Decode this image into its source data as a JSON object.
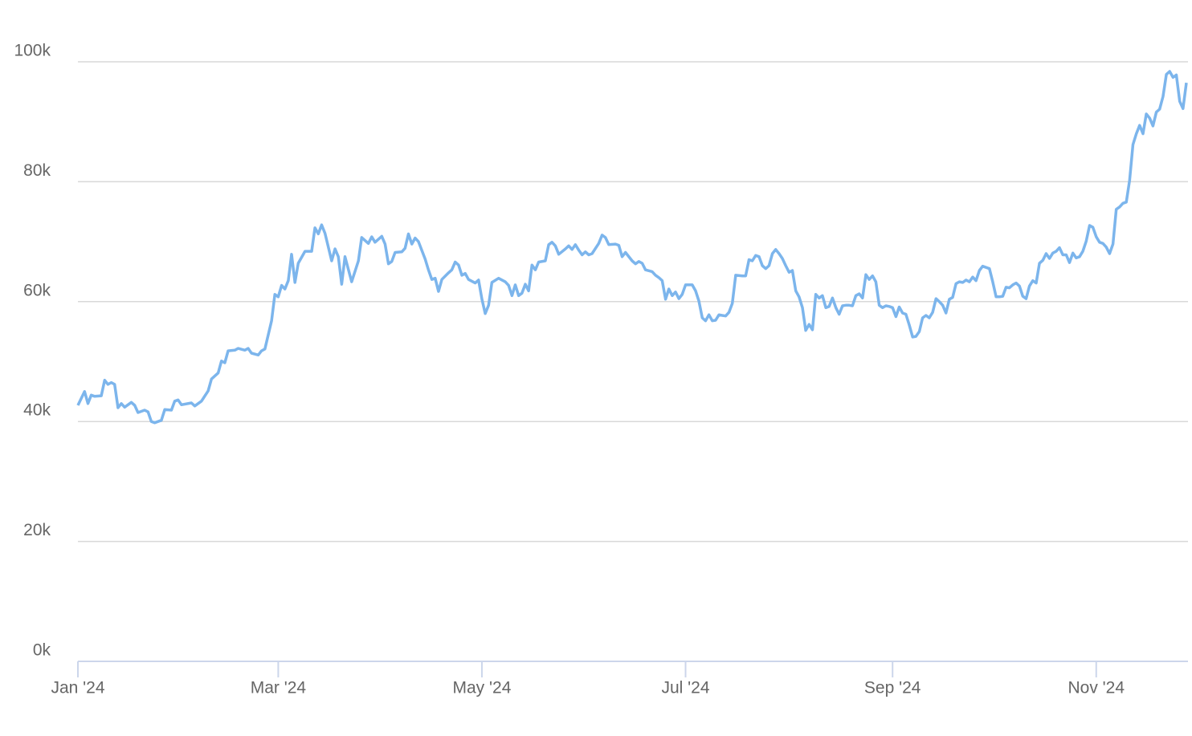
{
  "chart_data": {
    "type": "line",
    "x": [
      0,
      2,
      3,
      4,
      5,
      7,
      8,
      9,
      10,
      11,
      12,
      13,
      14,
      16,
      17,
      18,
      20,
      21,
      22,
      23,
      25,
      26,
      28,
      29,
      30,
      31,
      34,
      35,
      37,
      39,
      40,
      42,
      43,
      44,
      45,
      47,
      48,
      50,
      51,
      52,
      54,
      55,
      56,
      58,
      59,
      60,
      61,
      62,
      63,
      64,
      65,
      66,
      68,
      70,
      71,
      72,
      73,
      74,
      76,
      77,
      78,
      79,
      80,
      82,
      84,
      85,
      87,
      88,
      89,
      91,
      92,
      93,
      94,
      95,
      97,
      98,
      99,
      100,
      101,
      102,
      104,
      105,
      106,
      107,
      108,
      109,
      111,
      112,
      113,
      114,
      115,
      116,
      117,
      119,
      120,
      121,
      122,
      123,
      124,
      126,
      128,
      129,
      130,
      131,
      132,
      133,
      134,
      135,
      136,
      137,
      138,
      140,
      141,
      142,
      143,
      144,
      146,
      147,
      148,
      149,
      150,
      151,
      152,
      153,
      154,
      156,
      157,
      158,
      159,
      161,
      162,
      163,
      164,
      166,
      167,
      168,
      169,
      170,
      172,
      173,
      174,
      175,
      176,
      177,
      178,
      179,
      180,
      181,
      182,
      184,
      185,
      186,
      187,
      188,
      189,
      190,
      191,
      192,
      193,
      194,
      195,
      196,
      197,
      199,
      200,
      201,
      202,
      203,
      204,
      205,
      206,
      207,
      208,
      209,
      210,
      211,
      212,
      213,
      214,
      215,
      216,
      217,
      218,
      219,
      220,
      221,
      222,
      223,
      224,
      225,
      226,
      227,
      228,
      229,
      230,
      231,
      232,
      233,
      234,
      235,
      236,
      237,
      238,
      239,
      240,
      241,
      242,
      243,
      244,
      245,
      246,
      247,
      248,
      249,
      250,
      251,
      252,
      253,
      254,
      255,
      256,
      257,
      258,
      259,
      260,
      261,
      262,
      263,
      264,
      265,
      266,
      267,
      268,
      269,
      270,
      271,
      272,
      273,
      274,
      275,
      276,
      277,
      278,
      279,
      280,
      281,
      282,
      283,
      284,
      285,
      286,
      287,
      288,
      289,
      290,
      291,
      292,
      293,
      294,
      295,
      296,
      297,
      298,
      299,
      300,
      301,
      302,
      303,
      304,
      305,
      306,
      307,
      308,
      309,
      310,
      311,
      312,
      313,
      314,
      315,
      316,
      317,
      318,
      319,
      320,
      321,
      322,
      323,
      324,
      325,
      326,
      327,
      328,
      329,
      330,
      331,
      332
    ],
    "series": [
      {
        "color": "#7cb5ec",
        "values": [
          42.7,
          45.0,
          43.0,
          44.4,
          44.2,
          44.3,
          46.9,
          46.2,
          46.5,
          46.2,
          42.3,
          43.0,
          42.4,
          43.2,
          42.7,
          41.5,
          41.9,
          41.6,
          40.0,
          39.8,
          40.2,
          42.0,
          41.9,
          43.4,
          43.6,
          42.8,
          43.1,
          42.6,
          43.4,
          45.1,
          47.1,
          48.1,
          50.1,
          49.8,
          51.8,
          51.9,
          52.2,
          51.9,
          52.2,
          51.4,
          51.1,
          51.8,
          52.1,
          56.8,
          61.2,
          60.8,
          62.7,
          62.1,
          63.5,
          67.9,
          63.2,
          66.4,
          68.4,
          68.4,
          72.3,
          71.3,
          72.8,
          71.4,
          66.8,
          68.8,
          67.5,
          62.9,
          67.5,
          63.3,
          66.8,
          70.7,
          69.7,
          70.8,
          69.9,
          70.9,
          69.6,
          66.3,
          66.7,
          68.2,
          68.3,
          68.9,
          71.3,
          69.6,
          70.6,
          70.0,
          67.1,
          65.3,
          63.7,
          63.9,
          61.7,
          63.7,
          64.8,
          65.3,
          66.6,
          66.1,
          64.4,
          64.7,
          63.7,
          63.1,
          63.6,
          60.4,
          58.0,
          59.4,
          63.2,
          63.9,
          63.3,
          62.7,
          61.0,
          62.8,
          61.0,
          61.4,
          62.9,
          61.8,
          66.1,
          65.3,
          66.6,
          66.8,
          69.5,
          69.9,
          69.3,
          67.9,
          68.8,
          69.3,
          68.7,
          69.5,
          68.6,
          67.8,
          68.3,
          67.8,
          68.0,
          69.7,
          71.1,
          70.7,
          69.5,
          69.6,
          69.4,
          67.5,
          68.2,
          66.8,
          66.3,
          66.7,
          66.4,
          65.3,
          65.0,
          64.4,
          64.0,
          63.5,
          60.4,
          62.1,
          61.0,
          61.6,
          60.5,
          61.2,
          62.8,
          62.8,
          61.8,
          60.1,
          57.3,
          56.8,
          57.8,
          56.8,
          56.9,
          57.8,
          57.7,
          57.6,
          58.2,
          59.7,
          64.4,
          64.3,
          64.3,
          67.0,
          66.8,
          67.7,
          67.5,
          66.0,
          65.5,
          66.0,
          68.0,
          68.7,
          68.0,
          67.2,
          66.0,
          64.9,
          65.2,
          61.8,
          60.8,
          59.0,
          55.2,
          56.2,
          55.3,
          61.2,
          60.6,
          61.0,
          59.0,
          59.2,
          60.6,
          59.0,
          57.9,
          59.3,
          59.4,
          59.4,
          59.3,
          61.0,
          61.3,
          60.6,
          64.5,
          63.7,
          64.3,
          63.3,
          59.4,
          59.0,
          59.3,
          59.2,
          59.0,
          57.5,
          59.1,
          58.1,
          57.9,
          56.1,
          54.1,
          54.2,
          55.0,
          57.3,
          57.7,
          57.3,
          58.2,
          60.5,
          60.0,
          59.4,
          58.1,
          60.4,
          60.7,
          63.0,
          63.3,
          63.2,
          63.6,
          63.3,
          64.1,
          63.5,
          65.2,
          65.9,
          65.7,
          65.5,
          63.3,
          60.8,
          60.8,
          60.9,
          62.4,
          62.3,
          62.8,
          63.1,
          62.6,
          60.9,
          60.5,
          62.6,
          63.5,
          63.1,
          66.4,
          66.9,
          68.0,
          67.2,
          68.1,
          68.4,
          69.0,
          67.8,
          67.8,
          66.5,
          68.1,
          67.3,
          67.5,
          68.4,
          70.1,
          72.7,
          72.4,
          70.8,
          69.9,
          69.7,
          69.1,
          68.0,
          69.6,
          75.4,
          75.8,
          76.4,
          76.6,
          80.2,
          86.2,
          88.0,
          89.4,
          88.0,
          91.3,
          90.6,
          89.3,
          91.6,
          92.1,
          94.2,
          97.9,
          98.4,
          97.4,
          97.8,
          93.4,
          92.2,
          96.5
        ]
      }
    ],
    "xlim": [
      0,
      332
    ],
    "xticks": [
      {
        "value": 0,
        "label": "Jan '24"
      },
      {
        "value": 60,
        "label": "Mar '24"
      },
      {
        "value": 121,
        "label": "May '24"
      },
      {
        "value": 182,
        "label": "Jul '24"
      },
      {
        "value": 244,
        "label": "Sep '24"
      },
      {
        "value": 305,
        "label": "Nov '24"
      }
    ],
    "ylim": [
      0,
      100
    ],
    "yticks": [
      {
        "value": 0,
        "label": "0k"
      },
      {
        "value": 20,
        "label": "20k"
      },
      {
        "value": 40,
        "label": "40k"
      },
      {
        "value": 60,
        "label": "60k"
      },
      {
        "value": 80,
        "label": "80k"
      },
      {
        "value": 100,
        "label": "100k"
      }
    ],
    "grid": true
  }
}
